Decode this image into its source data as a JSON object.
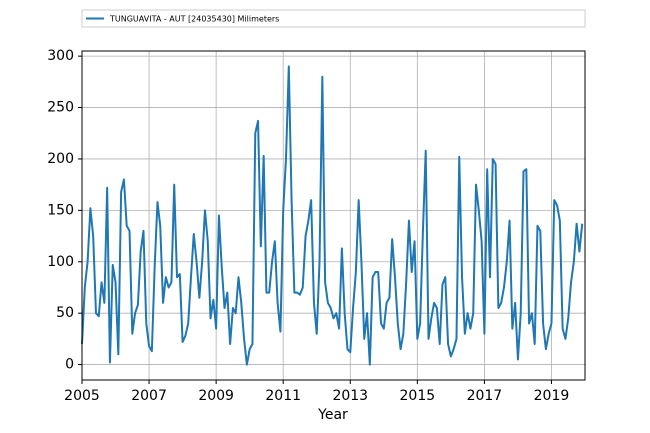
{
  "chart_data": {
    "type": "line",
    "xlabel": "Year",
    "x": [
      2005,
      2005.083,
      2005.167,
      2005.25,
      2005.333,
      2005.417,
      2005.5,
      2005.583,
      2005.667,
      2005.75,
      2005.833,
      2005.917,
      2006,
      2006.083,
      2006.167,
      2006.25,
      2006.333,
      2006.417,
      2006.5,
      2006.583,
      2006.667,
      2006.75,
      2006.833,
      2006.917,
      2007,
      2007.083,
      2007.167,
      2007.25,
      2007.333,
      2007.417,
      2007.5,
      2007.583,
      2007.667,
      2007.75,
      2007.833,
      2007.917,
      2008,
      2008.083,
      2008.167,
      2008.25,
      2008.333,
      2008.417,
      2008.5,
      2008.583,
      2008.667,
      2008.75,
      2008.833,
      2008.917,
      2009,
      2009.083,
      2009.167,
      2009.25,
      2009.333,
      2009.417,
      2009.5,
      2009.583,
      2009.667,
      2009.75,
      2009.833,
      2009.917,
      2010,
      2010.083,
      2010.167,
      2010.25,
      2010.333,
      2010.417,
      2010.5,
      2010.583,
      2010.667,
      2010.75,
      2010.833,
      2010.917,
      2011,
      2011.083,
      2011.167,
      2011.25,
      2011.333,
      2011.417,
      2011.5,
      2011.583,
      2011.667,
      2011.75,
      2011.833,
      2011.917,
      2012,
      2012.083,
      2012.167,
      2012.25,
      2012.333,
      2012.417,
      2012.5,
      2012.583,
      2012.667,
      2012.75,
      2012.833,
      2012.917,
      2013,
      2013.083,
      2013.167,
      2013.25,
      2013.333,
      2013.417,
      2013.5,
      2013.583,
      2013.667,
      2013.75,
      2013.833,
      2013.917,
      2014,
      2014.083,
      2014.167,
      2014.25,
      2014.333,
      2014.417,
      2014.5,
      2014.583,
      2014.667,
      2014.75,
      2014.833,
      2014.917,
      2015,
      2015.083,
      2015.167,
      2015.25,
      2015.333,
      2015.417,
      2015.5,
      2015.583,
      2015.667,
      2015.75,
      2015.833,
      2015.917,
      2016,
      2016.083,
      2016.167,
      2016.25,
      2016.333,
      2016.417,
      2016.5,
      2016.583,
      2016.667,
      2016.75,
      2016.833,
      2016.917,
      2017,
      2017.083,
      2017.167,
      2017.25,
      2017.333,
      2017.417,
      2017.5,
      2017.583,
      2017.667,
      2017.75,
      2017.833,
      2017.917,
      2018,
      2018.083,
      2018.167,
      2018.25,
      2018.333,
      2018.417,
      2018.5,
      2018.583,
      2018.667,
      2018.75,
      2018.833,
      2018.917,
      2019,
      2019.083,
      2019.167,
      2019.25,
      2019.333,
      2019.417,
      2019.5,
      2019.583,
      2019.667,
      2019.75,
      2019.833,
      2019.917
    ],
    "series": [
      {
        "name": "TUNGUAVITA - AUT [24035430] Milimeters",
        "color": "#1f77b4",
        "values": [
          20,
          75,
          100,
          152,
          125,
          50,
          47,
          80,
          60,
          172,
          2,
          97,
          80,
          10,
          168,
          180,
          135,
          130,
          30,
          50,
          58,
          110,
          130,
          40,
          18,
          13,
          95,
          158,
          135,
          60,
          85,
          75,
          80,
          175,
          85,
          88,
          22,
          28,
          40,
          85,
          127,
          100,
          65,
          100,
          150,
          120,
          45,
          63,
          35,
          145,
          95,
          55,
          70,
          20,
          55,
          50,
          85,
          60,
          25,
          0,
          15,
          20,
          225,
          237,
          115,
          203,
          70,
          70,
          100,
          120,
          60,
          32,
          150,
          200,
          290,
          160,
          70,
          70,
          68,
          75,
          125,
          140,
          160,
          60,
          30,
          100,
          280,
          80,
          60,
          55,
          45,
          50,
          35,
          113,
          50,
          15,
          12,
          55,
          90,
          160,
          100,
          25,
          50,
          0,
          85,
          90,
          90,
          40,
          35,
          60,
          65,
          122,
          85,
          40,
          15,
          30,
          80,
          140,
          90,
          120,
          25,
          40,
          130,
          208,
          25,
          45,
          60,
          55,
          20,
          78,
          85,
          20,
          8,
          15,
          25,
          202,
          85,
          30,
          50,
          35,
          50,
          175,
          150,
          120,
          30,
          190,
          85,
          200,
          195,
          55,
          60,
          75,
          100,
          140,
          35,
          60,
          5,
          50,
          188,
          190,
          40,
          50,
          20,
          135,
          130,
          40,
          15,
          30,
          40,
          160,
          155,
          140,
          35,
          25,
          45,
          80,
          100,
          137,
          110,
          137
        ]
      }
    ],
    "xlim": [
      2005,
      2020
    ],
    "xticks": [
      2005,
      2007,
      2009,
      2011,
      2013,
      2015,
      2017,
      2019
    ],
    "ylim": [
      -15,
      305
    ],
    "yticks": [
      0,
      50,
      100,
      150,
      200,
      250,
      300
    ],
    "grid": true
  }
}
